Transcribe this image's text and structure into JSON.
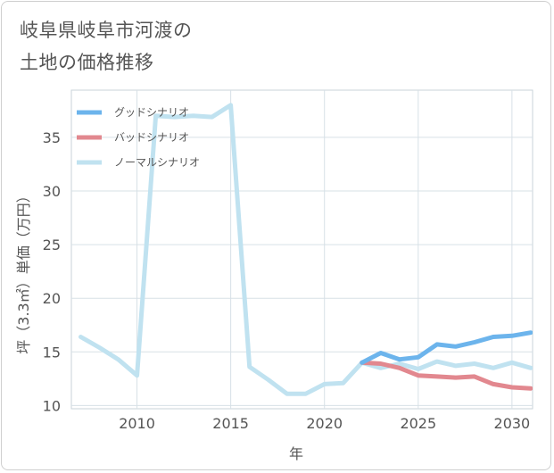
{
  "page_title_lines": [
    "岐阜県岐阜市河渡の",
    "土地の価格推移"
  ],
  "chart_data": {
    "type": "line",
    "xlabel": "年",
    "ylabel": "坪（3.3㎡）単価（万円）",
    "xlim": [
      2006.5,
      2031.1
    ],
    "ylim": [
      9.7,
      39.4
    ],
    "x_ticks": [
      2010,
      2015,
      2020,
      2025,
      2030
    ],
    "y_ticks": [
      10,
      15,
      20,
      25,
      30,
      35
    ],
    "legend_position": "top-left",
    "series": [
      {
        "name": "グッドシナリオ",
        "color": "#6cb4ec",
        "x": [
          2022,
          2023,
          2024,
          2025,
          2026,
          2027,
          2028,
          2029,
          2030,
          2031
        ],
        "values": [
          14.0,
          14.9,
          14.3,
          14.5,
          15.7,
          15.5,
          15.9,
          16.4,
          16.5,
          16.8
        ]
      },
      {
        "name": "バッドシナリオ",
        "color": "#e2888f",
        "x": [
          2022,
          2023,
          2024,
          2025,
          2026,
          2027,
          2028,
          2029,
          2030,
          2031
        ],
        "values": [
          14.0,
          13.9,
          13.5,
          12.8,
          12.7,
          12.6,
          12.7,
          12.0,
          11.7,
          11.6
        ]
      },
      {
        "name": "ノーマルシナリオ",
        "color": "#c0e2f0",
        "x": [
          2007,
          2008,
          2009,
          2010,
          2011,
          2012,
          2013,
          2014,
          2015,
          2016,
          2017,
          2018,
          2019,
          2020,
          2021,
          2022,
          2023,
          2024,
          2025,
          2026,
          2027,
          2028,
          2029,
          2030,
          2031
        ],
        "values": [
          16.4,
          15.4,
          14.3,
          12.8,
          37.0,
          36.9,
          37.0,
          36.9,
          38.0,
          13.6,
          12.4,
          11.1,
          11.1,
          12.0,
          12.1,
          14.0,
          13.5,
          13.9,
          13.4,
          14.1,
          13.7,
          13.9,
          13.5,
          14.0,
          13.5
        ]
      }
    ]
  }
}
